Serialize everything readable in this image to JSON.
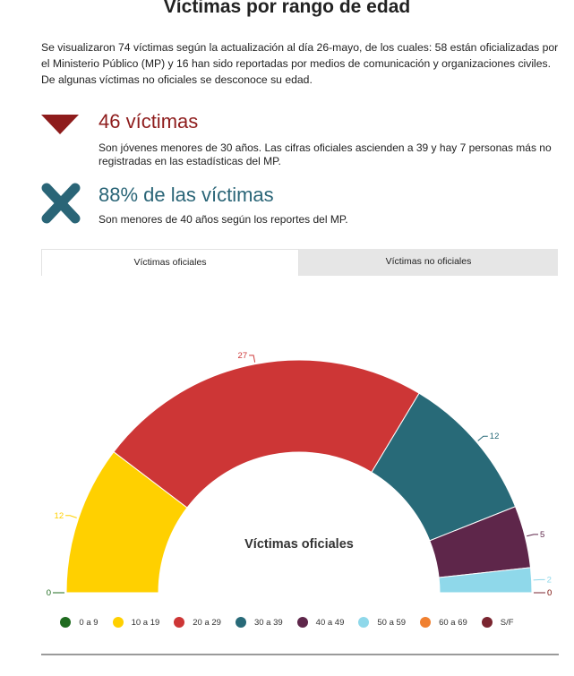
{
  "header": {
    "title": "Víctimas por rango de edad",
    "intro": "Se visualizaron 74 víctimas según la actualización al día 26-mayo, de los cuales: 58 están oficializadas por el Ministerio Público (MP) y 16 han sido reportadas por medios de comunicación y organizaciones civiles. De algunas víctimas no oficiales se desconoce su edad."
  },
  "stats": [
    {
      "headline": "46 víctimas",
      "text": "Son jóvenes menores de 30 años. Las cifras oficiales ascienden a 39 y hay 7 personas más no registradas en las estadísticas del MP.",
      "icon": "down-triangle-icon",
      "color": "#8e1c1c"
    },
    {
      "headline": "88% de las víctimas",
      "text": "Son menores de 40 años según los reportes del MP.",
      "icon": "cross-icon",
      "color": "#2a6577"
    }
  ],
  "tabs": [
    {
      "label": "Víctimas oficiales",
      "active": true
    },
    {
      "label": "Víctimas no oficiales",
      "active": false
    }
  ],
  "chart_data": {
    "type": "pie",
    "variant": "semicircle-donut",
    "title": "Víctimas oficiales",
    "categories": [
      "0 a 9",
      "10 a 19",
      "20 a 29",
      "30 a 39",
      "40 a 49",
      "50 a 59",
      "60 a 69",
      "S/F"
    ],
    "values": [
      0,
      12,
      27,
      12,
      5,
      2,
      0,
      0
    ],
    "colors": [
      "#1f6b1f",
      "#ffd000",
      "#cd3636",
      "#286a78",
      "#5e264a",
      "#8fd8ea",
      "#f08030",
      "#7a2530"
    ],
    "legend_position": "bottom"
  }
}
